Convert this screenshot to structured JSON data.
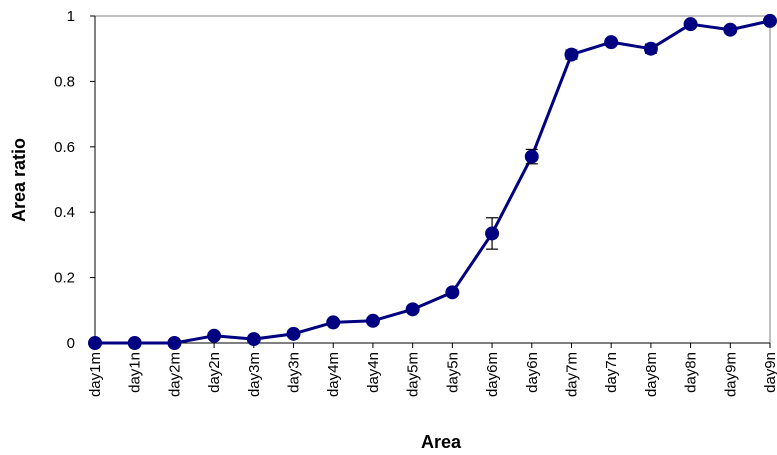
{
  "chart_data": {
    "type": "line",
    "title": "",
    "xlabel": "Area",
    "ylabel": "Area ratio",
    "ylim": [
      0,
      1
    ],
    "yticks": [
      0,
      0.2,
      0.4,
      0.6,
      0.8,
      1
    ],
    "ytick_labels": [
      "0",
      "0.2",
      "0.4",
      "0.6",
      "0.8",
      "1"
    ],
    "grid": false,
    "legend": "none",
    "categories": [
      "day1m",
      "day1n",
      "day2m",
      "day2n",
      "day3m",
      "day3n",
      "day4m",
      "day4n",
      "day5m",
      "day5n",
      "day6m",
      "day6n",
      "day7m",
      "day7n",
      "day8m",
      "day8n",
      "day9m",
      "day9n"
    ],
    "series": [
      {
        "color": "#000080",
        "values": [
          0.0,
          0.0,
          0.0,
          0.022,
          0.012,
          0.028,
          0.063,
          0.068,
          0.103,
          0.155,
          0.335,
          0.57,
          0.882,
          0.92,
          0.9,
          0.975,
          0.958,
          0.985
        ],
        "error": [
          0.0,
          0.0,
          0.0,
          0.004,
          0.004,
          0.004,
          0.006,
          0.006,
          0.008,
          0.008,
          0.048,
          0.022,
          0.014,
          0.006,
          0.014,
          0.006,
          0.006,
          0.006
        ]
      }
    ]
  }
}
